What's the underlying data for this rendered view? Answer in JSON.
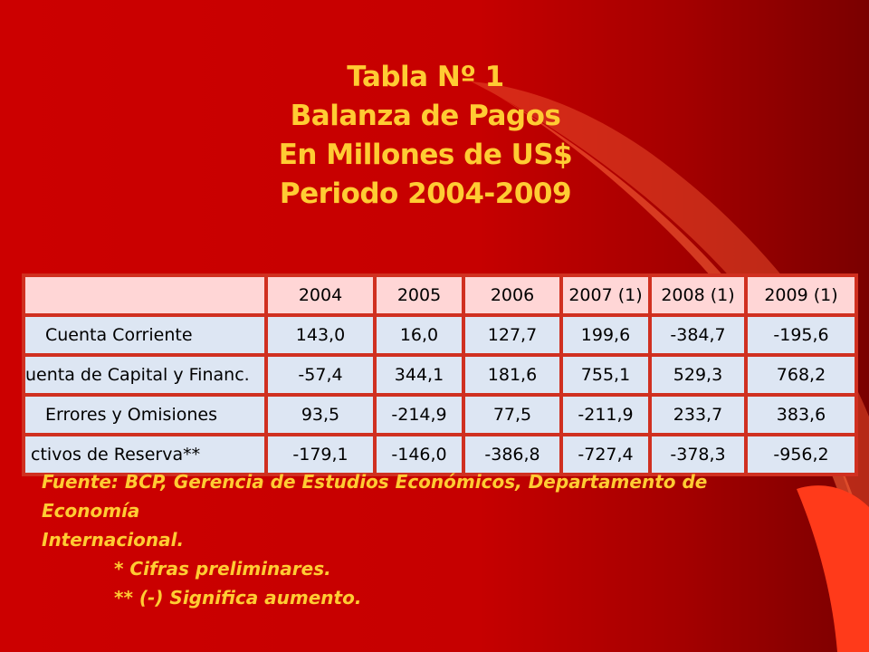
{
  "title": {
    "line1": "Tabla Nº 1",
    "line2": "Balanza de Pagos",
    "line3": "En Millones de US$",
    "line4": "Periodo 2004-2009"
  },
  "table": {
    "columns": [
      "2004",
      "2005",
      "2006",
      "2007 (1)",
      "2008 (1)",
      "2009 (1)"
    ],
    "rows": [
      {
        "label": "Cuenta Corriente",
        "values": [
          "143,0",
          "16,0",
          "127,7",
          "199,6",
          "-384,7",
          "-195,6"
        ]
      },
      {
        "label": "uenta de Capital y Financ.",
        "values": [
          "-57,4",
          "344,1",
          "181,6",
          "755,1",
          "529,3",
          "768,2"
        ]
      },
      {
        "label": "Errores y Omisiones",
        "values": [
          "93,5",
          "-214,9",
          "77,5",
          "-211,9",
          "233,7",
          "383,6"
        ]
      },
      {
        "label": "ctivos de Reserva**",
        "values": [
          "-179,1",
          "-146,0",
          "-386,8",
          "-727,4",
          "-378,3",
          "-956,2"
        ]
      }
    ]
  },
  "notes": {
    "source_line1": "Fuente: BCP, Gerencia de Estudios Económicos, Departamento de Economía",
    "source_line2": "Internacional.",
    "note1": "* Cifras preliminares.",
    "note2": "** (-) Significa aumento."
  },
  "colors": {
    "background": "#cc0000",
    "title_text": "#ffcc33",
    "table_border": "#d03020",
    "header_fill": "#ffd6d6",
    "cell_fill": "#dde6f3"
  }
}
